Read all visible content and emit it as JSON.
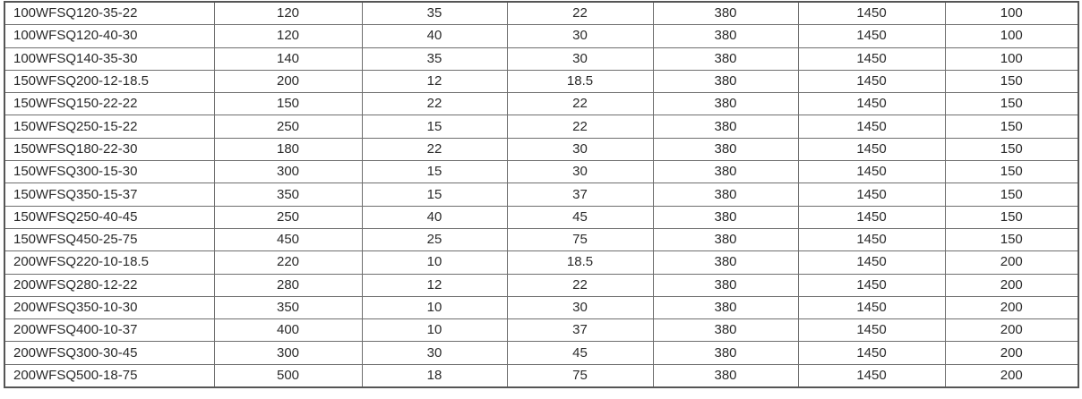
{
  "table": {
    "rows": [
      [
        "100WFSQ120-35-22",
        "120",
        "35",
        "22",
        "380",
        "1450",
        "100"
      ],
      [
        "100WFSQ120-40-30",
        "120",
        "40",
        "30",
        "380",
        "1450",
        "100"
      ],
      [
        "100WFSQ140-35-30",
        "140",
        "35",
        "30",
        "380",
        "1450",
        "100"
      ],
      [
        "150WFSQ200-12-18.5",
        "200",
        "12",
        "18.5",
        "380",
        "1450",
        "150"
      ],
      [
        "150WFSQ150-22-22",
        "150",
        "22",
        "22",
        "380",
        "1450",
        "150"
      ],
      [
        "150WFSQ250-15-22",
        "250",
        "15",
        "22",
        "380",
        "1450",
        "150"
      ],
      [
        "150WFSQ180-22-30",
        "180",
        "22",
        "30",
        "380",
        "1450",
        "150"
      ],
      [
        "150WFSQ300-15-30",
        "300",
        "15",
        "30",
        "380",
        "1450",
        "150"
      ],
      [
        "150WFSQ350-15-37",
        "350",
        "15",
        "37",
        "380",
        "1450",
        "150"
      ],
      [
        "150WFSQ250-40-45",
        "250",
        "40",
        "45",
        "380",
        "1450",
        "150"
      ],
      [
        "150WFSQ450-25-75",
        "450",
        "25",
        "75",
        "380",
        "1450",
        "150"
      ],
      [
        "200WFSQ220-10-18.5",
        "220",
        "10",
        "18.5",
        "380",
        "1450",
        "200"
      ],
      [
        "200WFSQ280-12-22",
        "280",
        "12",
        "22",
        "380",
        "1450",
        "200"
      ],
      [
        "200WFSQ350-10-30",
        "350",
        "10",
        "30",
        "380",
        "1450",
        "200"
      ],
      [
        "200WFSQ400-10-37",
        "400",
        "10",
        "37",
        "380",
        "1450",
        "200"
      ],
      [
        "200WFSQ300-30-45",
        "300",
        "30",
        "45",
        "380",
        "1450",
        "200"
      ],
      [
        "200WFSQ500-18-75",
        "500",
        "18",
        "75",
        "380",
        "1450",
        "200"
      ]
    ]
  }
}
